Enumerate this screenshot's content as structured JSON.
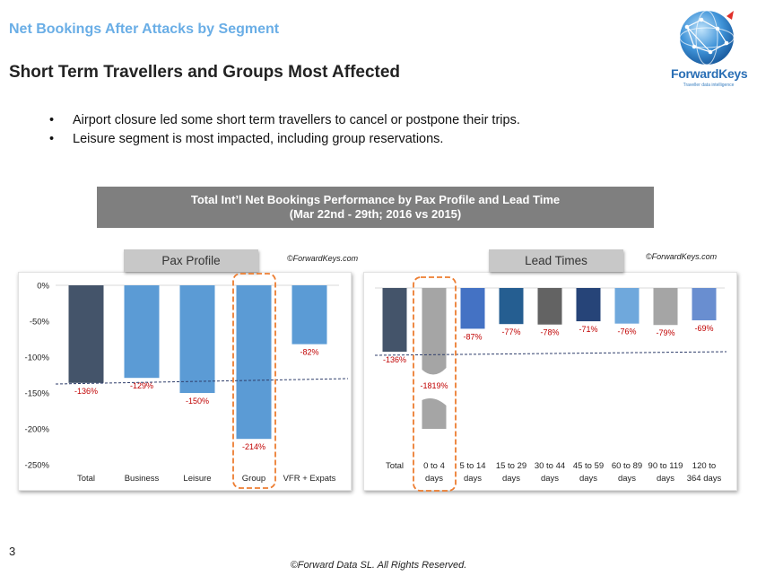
{
  "header": {
    "subtitle": "Net Bookings After Attacks by Segment",
    "title": "Short Term Travellers and Groups Most Affected"
  },
  "logo": {
    "name": "ForwardKeys",
    "tagline": "Traveller data intelligence",
    "icon": "globe-network-icon"
  },
  "bullets": [
    "Airport closure led some short term travellers to cancel or postpone their trips.",
    "Leisure segment is most impacted, including group reservations."
  ],
  "banner": {
    "line1": "Total Int’l Net Bookings Performance by Pax Profile and Lead Time",
    "line2": "(Mar 22nd - 29th; 2016 vs 2015)"
  },
  "colors": {
    "total": "#44546a",
    "bar": "#5b9bd5",
    "bar_gray": "#a5a5a5",
    "label": "#c00000",
    "highlight": "#ed7d31",
    "banner": "#7f7f7f"
  },
  "chart_data": [
    {
      "type": "bar",
      "title": "Pax Profile",
      "source": "©ForwardKeys.com",
      "categories": [
        "Total",
        "Business",
        "Leisure",
        "Group",
        "VFR + Expats"
      ],
      "values": [
        -136,
        -129,
        -150,
        -214,
        -82
      ],
      "value_labels": [
        "-136%",
        "-129%",
        "-150%",
        "-214%",
        "-82%"
      ],
      "bar_colors": [
        "#44546a",
        "#5b9bd5",
        "#5b9bd5",
        "#5b9bd5",
        "#5b9bd5"
      ],
      "ylim": [
        -250,
        0
      ],
      "yticks": [
        0,
        -50,
        -100,
        -150,
        -200,
        -250
      ],
      "ytick_labels": [
        "0%",
        "-50%",
        "-100%",
        "-150%",
        "-200%",
        "-250%"
      ],
      "reference_line": -136,
      "highlight_category": "Group"
    },
    {
      "type": "bar",
      "title": "Lead Times",
      "source": "©ForwardKeys.com",
      "categories": [
        [
          "Total"
        ],
        [
          "0 to 4",
          "days"
        ],
        [
          "5 to 14",
          "days"
        ],
        [
          "15 to 29",
          "days"
        ],
        [
          "30 to 44",
          "days"
        ],
        [
          "45 to 59",
          "days"
        ],
        [
          "60 to 89",
          "days"
        ],
        [
          "90 to 119",
          "days"
        ],
        [
          "120 to",
          "364 days"
        ]
      ],
      "values": [
        -136,
        -1819,
        -87,
        -77,
        -78,
        -71,
        -76,
        -79,
        -69
      ],
      "value_labels": [
        "-136%",
        "-1819%",
        "-87%",
        "-77%",
        "-78%",
        "-71%",
        "-76%",
        "-79%",
        "-69%"
      ],
      "bar_colors": [
        "#44546a",
        "#a5a5a5",
        "#4472c4",
        "#255e91",
        "#636363",
        "#264478",
        "#6fa8dc",
        "#a5a5a5",
        "#698ed0"
      ],
      "axis_break": true,
      "reference_line": -136,
      "highlight_category": "0 to 4 days"
    }
  ],
  "footer": {
    "slide_number": "3",
    "copyright": "©Forward Data SL. All Rights Reserved."
  }
}
